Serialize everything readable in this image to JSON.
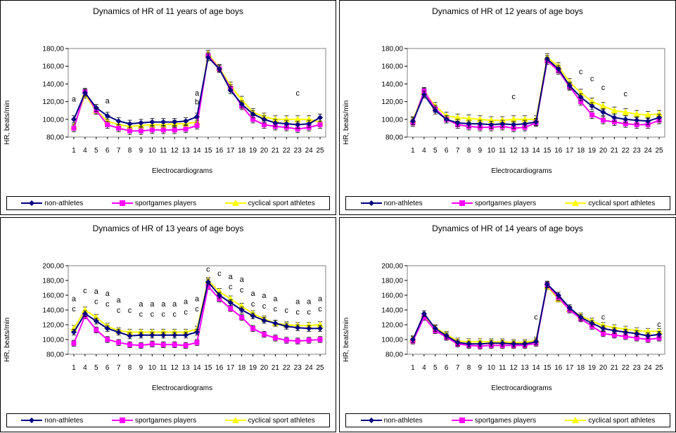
{
  "legend": [
    "non-athletes",
    "sportgames players",
    "cyclical sport athletes"
  ],
  "colors": {
    "non-athletes": "#000080",
    "sportgames players": "#ff00ff",
    "cyclical sport athletes": "#ffff00"
  },
  "chart_data": [
    {
      "type": "line",
      "title": "Dynamics of HR of 11 years of age boys",
      "xlabel": "Electrocardiograms",
      "ylabel": "HR, beats/min",
      "ylim": [
        80,
        180
      ],
      "yticks": [
        "80,00",
        "100,00",
        "120,00",
        "140,00",
        "160,00",
        "180,00"
      ],
      "categories": [
        "1",
        "4",
        "5",
        "6",
        "7",
        "8",
        "9",
        "10",
        "11",
        "12",
        "13",
        "14",
        "15",
        "16",
        "17",
        "18",
        "19",
        "20",
        "21",
        "22",
        "23",
        "24",
        "25"
      ],
      "series": [
        {
          "name": "non-athletes",
          "values": [
            100,
            130,
            113,
            104,
            98,
            95,
            96,
            97,
            97,
            97,
            98,
            103,
            170,
            157,
            133,
            117,
            106,
            100,
            96,
            95,
            94,
            95,
            102
          ]
        },
        {
          "name": "sportgames players",
          "values": [
            90,
            131,
            110,
            94,
            90,
            87,
            87,
            88,
            88,
            88,
            89,
            93,
            172,
            157,
            135,
            115,
            100,
            94,
            92,
            91,
            89,
            91,
            94
          ]
        },
        {
          "name": "cyclical sport athletes",
          "values": [
            92,
            128,
            110,
            98,
            94,
            92,
            93,
            94,
            94,
            95,
            95,
            97,
            174,
            158,
            138,
            122,
            108,
            103,
            100,
            100,
            100,
            100,
            97
          ]
        }
      ],
      "annotations": [
        {
          "x": "1",
          "y": 120,
          "text": "a"
        },
        {
          "x": "6",
          "y": 118,
          "text": "a"
        },
        {
          "x": "14",
          "y": 127,
          "text": "a"
        },
        {
          "x": "14",
          "y": 117,
          "text": "b"
        },
        {
          "x": "23",
          "y": 127,
          "text": "c"
        }
      ]
    },
    {
      "type": "line",
      "title": "Dynamics of HR of 12 years of age boys",
      "xlabel": "Electrocardiograms",
      "ylabel": "HR, beats/min",
      "ylim": [
        80,
        180
      ],
      "yticks": [
        "80,00",
        "100,00",
        "120,00",
        "140,00",
        "160,00",
        "180,00"
      ],
      "categories": [
        "1",
        "4",
        "5",
        "6",
        "7",
        "8",
        "9",
        "10",
        "11",
        "12",
        "13",
        "14",
        "15",
        "16",
        "17",
        "18",
        "19",
        "20",
        "21",
        "22",
        "23",
        "24",
        "25"
      ],
      "series": [
        {
          "name": "non-athletes",
          "values": [
            98,
            128,
            110,
            100,
            96,
            95,
            95,
            94,
            95,
            94,
            95,
            97,
            168,
            157,
            138,
            125,
            115,
            108,
            102,
            100,
            99,
            98,
            102
          ]
        },
        {
          "name": "sportgames players",
          "values": [
            96,
            132,
            112,
            100,
            94,
            92,
            91,
            91,
            92,
            90,
            91,
            96,
            166,
            155,
            137,
            120,
            105,
            99,
            97,
            95,
            94,
            94,
            99
          ]
        },
        {
          "name": "cyclical sport athletes",
          "values": [
            99,
            131,
            115,
            104,
            102,
            101,
            100,
            99,
            99,
            100,
            100,
            100,
            170,
            160,
            142,
            130,
            120,
            115,
            110,
            108,
            106,
            105,
            106
          ]
        }
      ],
      "annotations": [
        {
          "x": "12",
          "y": 123,
          "text": "c"
        },
        {
          "x": "18",
          "y": 151,
          "text": "c"
        },
        {
          "x": "19",
          "y": 143,
          "text": "c"
        },
        {
          "x": "20",
          "y": 133,
          "text": "c"
        },
        {
          "x": "22",
          "y": 126,
          "text": "c"
        }
      ]
    },
    {
      "type": "line",
      "title": "Dynamics of HR of 13 years of age boys",
      "xlabel": "Electrocardiograms",
      "ylabel": "HR, beats/min",
      "ylim": [
        80,
        200
      ],
      "yticks": [
        "80,00",
        "100,00",
        "120,00",
        "140,00",
        "160,00",
        "180,00",
        "200,00"
      ],
      "categories": [
        "1",
        "4",
        "5",
        "6",
        "7",
        "8",
        "9",
        "10",
        "11",
        "12",
        "13",
        "14",
        "15",
        "16",
        "17",
        "18",
        "19",
        "20",
        "21",
        "22",
        "23",
        "24",
        "25"
      ],
      "series": [
        {
          "name": "non-athletes",
          "values": [
            110,
            135,
            125,
            115,
            110,
            105,
            106,
            106,
            106,
            106,
            106,
            110,
            178,
            160,
            150,
            140,
            132,
            126,
            122,
            118,
            116,
            115,
            115
          ]
        },
        {
          "name": "sportgames players",
          "values": [
            95,
            132,
            113,
            100,
            96,
            93,
            92,
            94,
            93,
            93,
            92,
            96,
            172,
            155,
            142,
            130,
            115,
            107,
            102,
            99,
            98,
            99,
            100
          ]
        },
        {
          "name": "cyclical sport athletes",
          "values": [
            115,
            140,
            130,
            118,
            112,
            110,
            110,
            110,
            110,
            110,
            110,
            114,
            180,
            165,
            155,
            145,
            135,
            128,
            122,
            120,
            119,
            119,
            120
          ]
        }
      ],
      "annotations": [
        {
          "x": "1",
          "y": 152,
          "text": "a"
        },
        {
          "x": "1",
          "y": 138,
          "text": "c"
        },
        {
          "x": "4",
          "y": 163,
          "text": "c"
        },
        {
          "x": "5",
          "y": 162,
          "text": "a"
        },
        {
          "x": "5",
          "y": 148,
          "text": "c"
        },
        {
          "x": "6",
          "y": 159,
          "text": "a"
        },
        {
          "x": "6",
          "y": 145,
          "text": "c"
        },
        {
          "x": "7",
          "y": 150,
          "text": "a"
        },
        {
          "x": "7",
          "y": 136,
          "text": "c"
        },
        {
          "x": "8",
          "y": 136,
          "text": "c"
        },
        {
          "x": "9",
          "y": 145,
          "text": "a"
        },
        {
          "x": "9",
          "y": 131,
          "text": "c"
        },
        {
          "x": "10",
          "y": 145,
          "text": "a"
        },
        {
          "x": "10",
          "y": 131,
          "text": "c"
        },
        {
          "x": "11",
          "y": 145,
          "text": "a"
        },
        {
          "x": "11",
          "y": 131,
          "text": "c"
        },
        {
          "x": "12",
          "y": 145,
          "text": "a"
        },
        {
          "x": "12",
          "y": 131,
          "text": "c"
        },
        {
          "x": "13",
          "y": 148,
          "text": "a"
        },
        {
          "x": "13",
          "y": 134,
          "text": "c"
        },
        {
          "x": "14",
          "y": 152,
          "text": "a"
        },
        {
          "x": "14",
          "y": 138,
          "text": "c"
        },
        {
          "x": "15",
          "y": 192,
          "text": "c"
        },
        {
          "x": "16",
          "y": 186,
          "text": "c"
        },
        {
          "x": "17",
          "y": 182,
          "text": "a"
        },
        {
          "x": "17",
          "y": 168,
          "text": "c"
        },
        {
          "x": "18",
          "y": 178,
          "text": "a"
        },
        {
          "x": "18",
          "y": 164,
          "text": "c"
        },
        {
          "x": "19",
          "y": 159,
          "text": "a"
        },
        {
          "x": "19",
          "y": 145,
          "text": "c"
        },
        {
          "x": "20",
          "y": 156,
          "text": "a"
        },
        {
          "x": "20",
          "y": 142,
          "text": "c"
        },
        {
          "x": "21",
          "y": 152,
          "text": "a"
        },
        {
          "x": "21",
          "y": 138,
          "text": "c"
        },
        {
          "x": "22",
          "y": 136,
          "text": "c"
        },
        {
          "x": "23",
          "y": 148,
          "text": "a"
        },
        {
          "x": "23",
          "y": 134,
          "text": "c"
        },
        {
          "x": "24",
          "y": 148,
          "text": "a"
        },
        {
          "x": "24",
          "y": 134,
          "text": "c"
        },
        {
          "x": "25",
          "y": 152,
          "text": "a"
        },
        {
          "x": "25",
          "y": 138,
          "text": "c"
        }
      ]
    },
    {
      "type": "line",
      "title": "Dynamics of HR of 14 years of age boys",
      "xlabel": "Electrocardiograms",
      "ylabel": "HR, beats/min",
      "ylim": [
        80,
        200
      ],
      "yticks": [
        "80,00",
        "100,00",
        "120,00",
        "140,00",
        "160,00",
        "180,00",
        "200,00"
      ],
      "categories": [
        "1",
        "4",
        "5",
        "6",
        "7",
        "8",
        "9",
        "10",
        "11",
        "12",
        "13",
        "14",
        "15",
        "16",
        "17",
        "18",
        "19",
        "20",
        "21",
        "22",
        "23",
        "24",
        "25"
      ],
      "series": [
        {
          "name": "non-athletes",
          "values": [
            100,
            135,
            115,
            105,
            96,
            94,
            94,
            95,
            95,
            94,
            94,
            97,
            175,
            160,
            143,
            130,
            122,
            115,
            112,
            110,
            108,
            105,
            107
          ]
        },
        {
          "name": "sportgames players",
          "values": [
            98,
            130,
            112,
            103,
            94,
            92,
            91,
            92,
            92,
            92,
            92,
            95,
            174,
            157,
            140,
            128,
            118,
            108,
            106,
            104,
            102,
            100,
            102
          ]
        },
        {
          "name": "cyclical sport athletes",
          "values": [
            101,
            132,
            116,
            107,
            98,
            97,
            97,
            97,
            97,
            96,
            96,
            99,
            172,
            155,
            141,
            132,
            125,
            119,
            116,
            114,
            112,
            111,
            111
          ]
        }
      ],
      "annotations": [
        {
          "x": "14",
          "y": 127,
          "text": "c"
        },
        {
          "x": "20",
          "y": 127,
          "text": "c"
        },
        {
          "x": "25",
          "y": 117,
          "text": "c"
        }
      ]
    }
  ]
}
